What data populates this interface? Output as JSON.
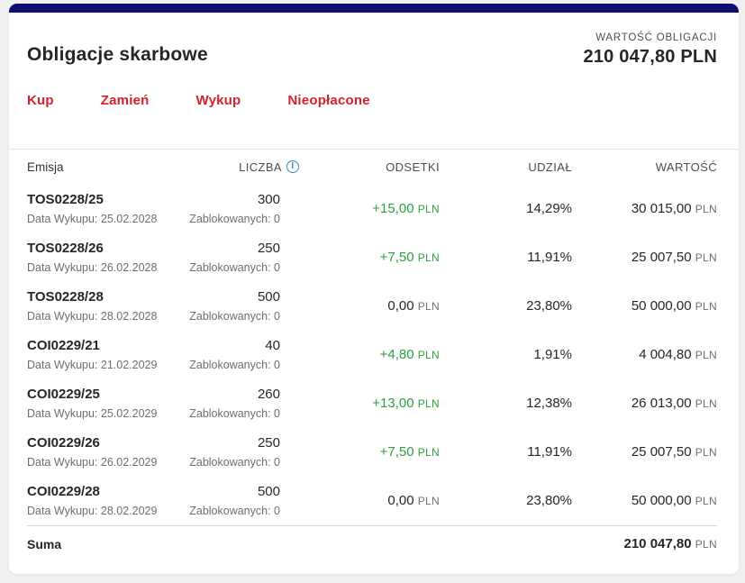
{
  "header": {
    "title": "Obligacje skarbowe",
    "value_label": "WARTOŚĆ OBLIGACJI",
    "value": "210 047,80 PLN"
  },
  "tabs": [
    {
      "label": "Kup"
    },
    {
      "label": "Zamień"
    },
    {
      "label": "Wykup"
    },
    {
      "label": "Nieopłacone"
    }
  ],
  "table": {
    "columns": {
      "emisja": "Emisja",
      "liczba": "LICZBA",
      "odsetki": "ODSETKI",
      "udzial": "UDZIAŁ",
      "wartosc": "WARTOŚĆ"
    },
    "info_icon_glyph": "i",
    "rows": [
      {
        "name": "TOS0228/25",
        "date_label": "Data Wykupu: 25.02.2028",
        "count": "300",
        "blocked": "Zablokowanych: 0",
        "interest": "+15,00",
        "interest_currency": "PLN",
        "interest_positive": true,
        "share": "14,29%",
        "value": "30 015,00",
        "value_currency": "PLN"
      },
      {
        "name": "TOS0228/26",
        "date_label": "Data Wykupu: 26.02.2028",
        "count": "250",
        "blocked": "Zablokowanych: 0",
        "interest": "+7,50",
        "interest_currency": "PLN",
        "interest_positive": true,
        "share": "11,91%",
        "value": "25 007,50",
        "value_currency": "PLN"
      },
      {
        "name": "TOS0228/28",
        "date_label": "Data Wykupu: 28.02.2028",
        "count": "500",
        "blocked": "Zablokowanych: 0",
        "interest": "0,00",
        "interest_currency": "PLN",
        "interest_positive": false,
        "share": "23,80%",
        "value": "50 000,00",
        "value_currency": "PLN"
      },
      {
        "name": "COI0229/21",
        "date_label": "Data Wykupu: 21.02.2029",
        "count": "40",
        "blocked": "Zablokowanych: 0",
        "interest": "+4,80",
        "interest_currency": "PLN",
        "interest_positive": true,
        "share": "1,91%",
        "value": "4 004,80",
        "value_currency": "PLN"
      },
      {
        "name": "COI0229/25",
        "date_label": "Data Wykupu: 25.02.2029",
        "count": "260",
        "blocked": "Zablokowanych: 0",
        "interest": "+13,00",
        "interest_currency": "PLN",
        "interest_positive": true,
        "share": "12,38%",
        "value": "26 013,00",
        "value_currency": "PLN"
      },
      {
        "name": "COI0229/26",
        "date_label": "Data Wykupu: 26.02.2029",
        "count": "250",
        "blocked": "Zablokowanych: 0",
        "interest": "+7,50",
        "interest_currency": "PLN",
        "interest_positive": true,
        "share": "11,91%",
        "value": "25 007,50",
        "value_currency": "PLN"
      },
      {
        "name": "COI0229/28",
        "date_label": "Data Wykupu: 28.02.2029",
        "count": "500",
        "blocked": "Zablokowanych: 0",
        "interest": "0,00",
        "interest_currency": "PLN",
        "interest_positive": false,
        "share": "23,80%",
        "value": "50 000,00",
        "value_currency": "PLN"
      }
    ],
    "summary": {
      "label": "Suma",
      "value": "210 047,80",
      "currency": "PLN"
    }
  },
  "colors": {
    "accent_navy": "#0e0e6f",
    "tab_red": "#d4212e",
    "positive_green": "#2e9e41",
    "info_blue": "#4285c8",
    "text_dark": "#262626",
    "text_gray": "#6e6e6e",
    "page_background": "#f0f0f0"
  }
}
